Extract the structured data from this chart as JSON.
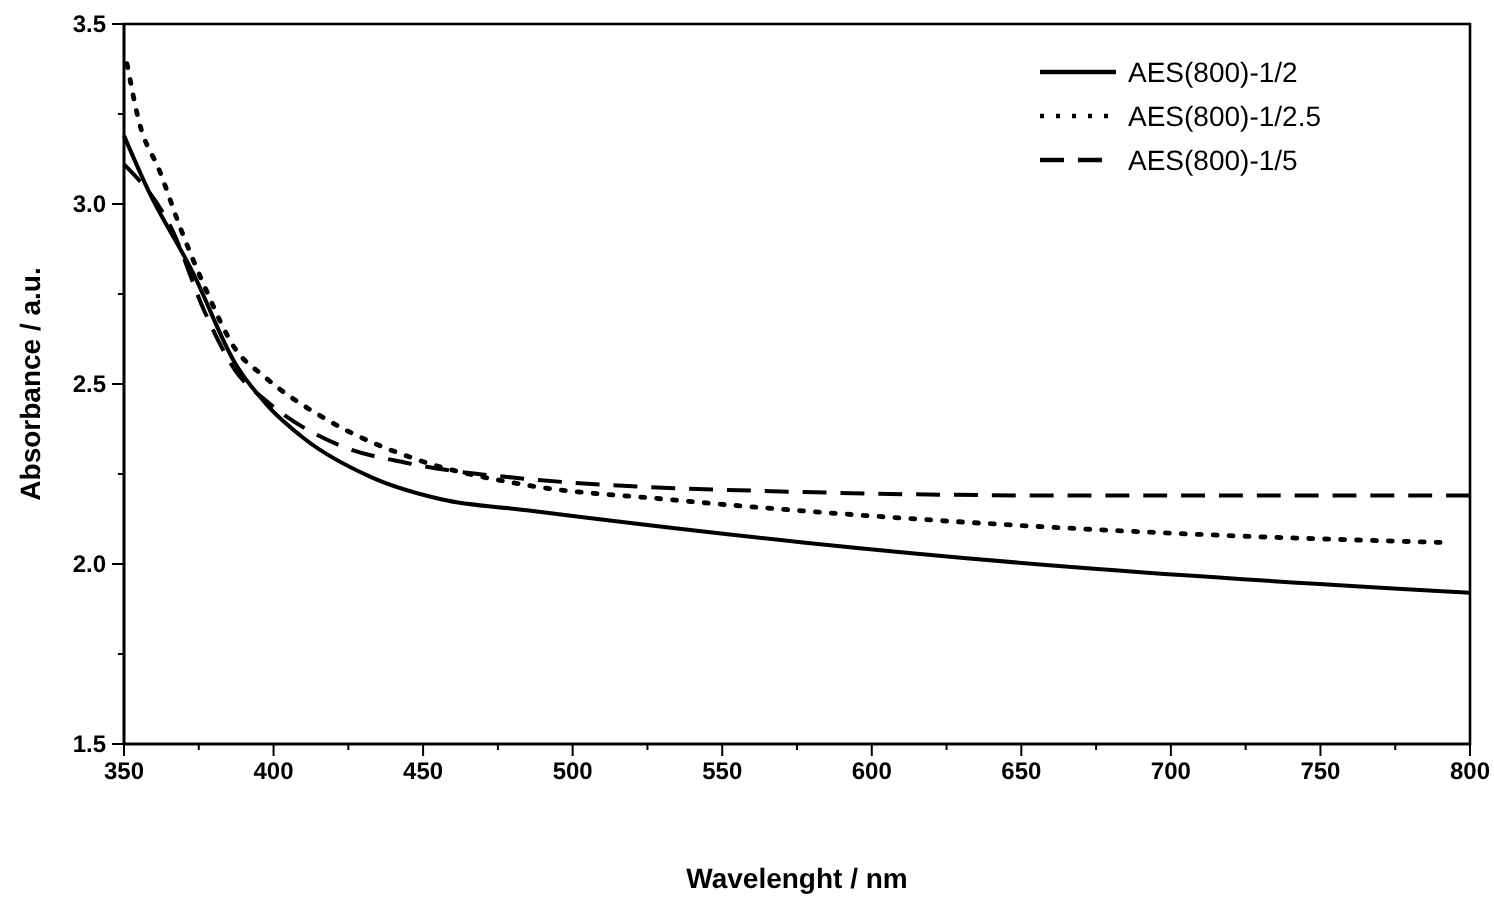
{
  "chart_data": {
    "type": "line",
    "xlabel": "Wavelenght / nm",
    "ylabel": "Absorbance / a.u.",
    "xlim": [
      350,
      800
    ],
    "xticks": [
      350,
      {
        "value": 375,
        "label": null
      },
      400,
      {
        "value": 425,
        "label": null
      },
      450,
      {
        "value": 475,
        "label": null
      },
      500,
      {
        "value": 525,
        "label": null
      },
      550,
      {
        "value": 575,
        "label": null
      },
      600,
      {
        "value": 625,
        "label": null
      },
      650,
      {
        "value": 675,
        "label": null
      },
      700,
      {
        "value": 725,
        "label": null
      },
      750,
      {
        "value": 775,
        "label": null
      },
      800
    ],
    "ylim": [
      1.5,
      3.5
    ],
    "yticks": [
      {
        "value": 1.5,
        "label": "1.5"
      },
      {
        "value": 1.75,
        "label": null
      },
      {
        "value": 2.0,
        "label": "2.0"
      },
      {
        "value": 2.25,
        "label": null
      },
      {
        "value": 2.5,
        "label": "2.5"
      },
      {
        "value": 2.75,
        "label": null
      },
      {
        "value": 3.0,
        "label": "3.0"
      },
      {
        "value": 3.25,
        "label": null
      },
      {
        "value": 3.5,
        "label": "3.5"
      }
    ],
    "grid": false,
    "legend": "top right",
    "series": [
      {
        "name": "AES(800)-1/2",
        "color": "#000000",
        "line_style": "solid",
        "x": [
          350,
          358,
          373,
          387,
          398,
          410,
          433,
          456,
          484,
          577,
          669,
          800
        ],
        "values": [
          3.19,
          3.04,
          2.81,
          2.56,
          2.44,
          2.35,
          2.24,
          2.18,
          2.15,
          2.06,
          1.99,
          1.92
        ]
      },
      {
        "name": "AES(800)-1/2.5",
        "color": "#000000",
        "line_style": "dotted",
        "x": [
          351,
          355,
          362,
          369,
          377,
          387,
          397,
          418,
          448,
          484,
          531,
          624,
          716,
          790
        ],
        "values": [
          3.39,
          3.23,
          3.09,
          2.93,
          2.77,
          2.6,
          2.52,
          2.4,
          2.29,
          2.22,
          2.18,
          2.12,
          2.08,
          2.06
        ]
      },
      {
        "name": "AES(800)-1/5",
        "color": "#000000",
        "line_style": "dashed",
        "x": [
          350,
          366,
          377,
          387,
          398,
          422,
          445,
          480,
          577,
          669,
          800
        ],
        "values": [
          3.11,
          2.93,
          2.7,
          2.54,
          2.45,
          2.33,
          2.28,
          2.24,
          2.2,
          2.19,
          2.19
        ]
      }
    ]
  }
}
